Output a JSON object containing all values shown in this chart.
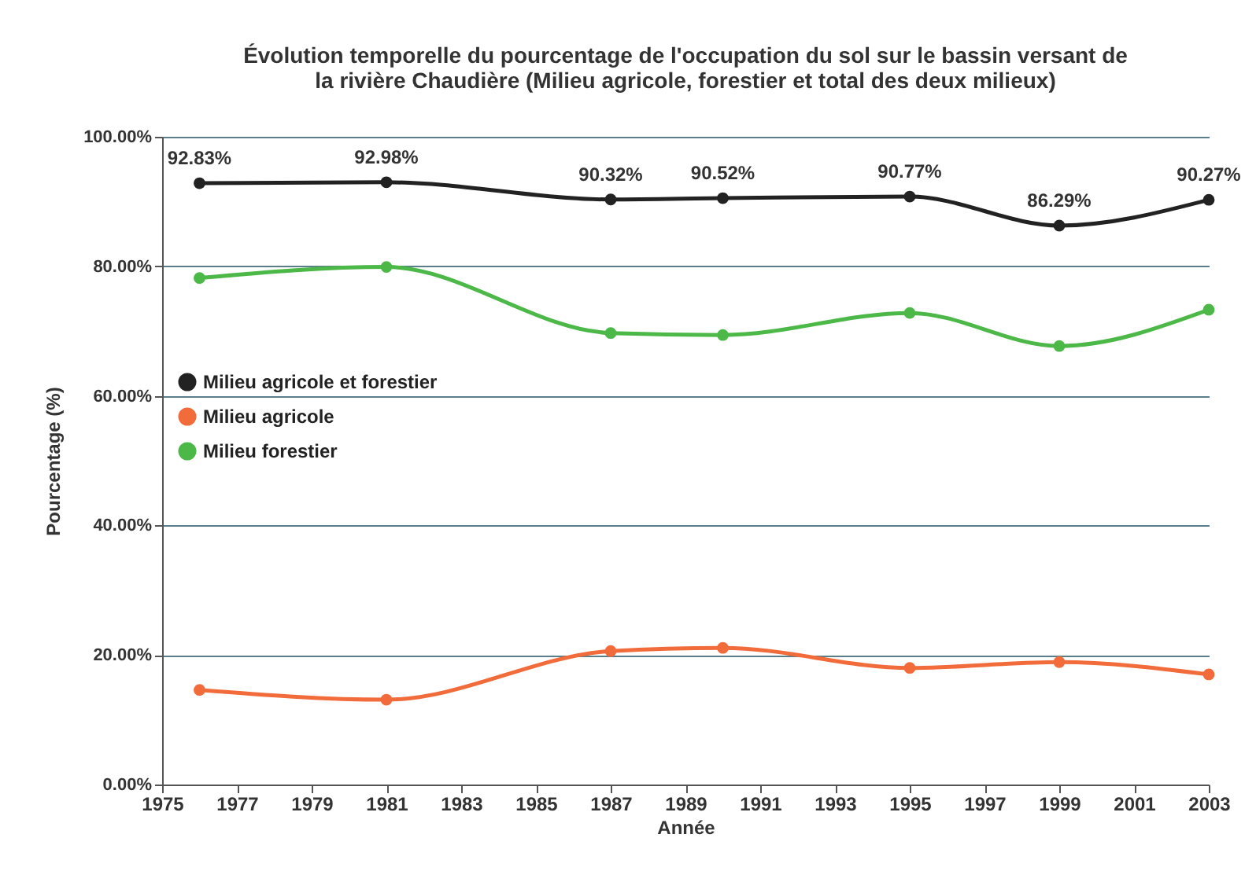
{
  "chart_data": {
    "type": "line",
    "title": "Évolution temporelle du pourcentage de l'occupation du sol sur le bassin versant de\nla rivière Chaudière (Milieu agricole, forestier et total des deux milieux)",
    "xlabel": "Année",
    "ylabel": "Pourcentage (%)",
    "x": [
      1976,
      1981,
      1987,
      1990,
      1995,
      1999,
      2003
    ],
    "series": [
      {
        "name": "Milieu agricole et forestier",
        "color": "#222222",
        "values": [
          92.83,
          92.98,
          90.32,
          90.52,
          90.77,
          86.29,
          90.27
        ],
        "value_labels": [
          "92.83%",
          "92.98%",
          "90.32%",
          "90.52%",
          "90.77%",
          "86.29%",
          "90.27%"
        ]
      },
      {
        "name": "Milieu agricole",
        "color": "#f26b3a",
        "values": [
          14.6,
          13.1,
          20.6,
          21.1,
          18.0,
          18.9,
          17.0
        ]
      },
      {
        "name": "Milieu forestier",
        "color": "#4cb848",
        "values": [
          78.2,
          79.9,
          69.7,
          69.4,
          72.8,
          67.7,
          73.3
        ]
      }
    ],
    "xlim": [
      1975,
      2003
    ],
    "xticks": [
      1975,
      1977,
      1979,
      1981,
      1983,
      1985,
      1987,
      1989,
      1991,
      1993,
      1995,
      1997,
      1999,
      2001,
      2003
    ],
    "ylim": [
      0,
      100
    ],
    "yticks": [
      {
        "value": 0,
        "label": "0.00%"
      },
      {
        "value": 20,
        "label": "20.00%"
      },
      {
        "value": 40,
        "label": "40.00%"
      },
      {
        "value": 60,
        "label": "60.00%"
      },
      {
        "value": 80,
        "label": "80.00%"
      },
      {
        "value": 100,
        "label": "100.00%"
      }
    ],
    "grid": "y",
    "legend": "left",
    "marker": "circle",
    "line_style": "solid"
  }
}
